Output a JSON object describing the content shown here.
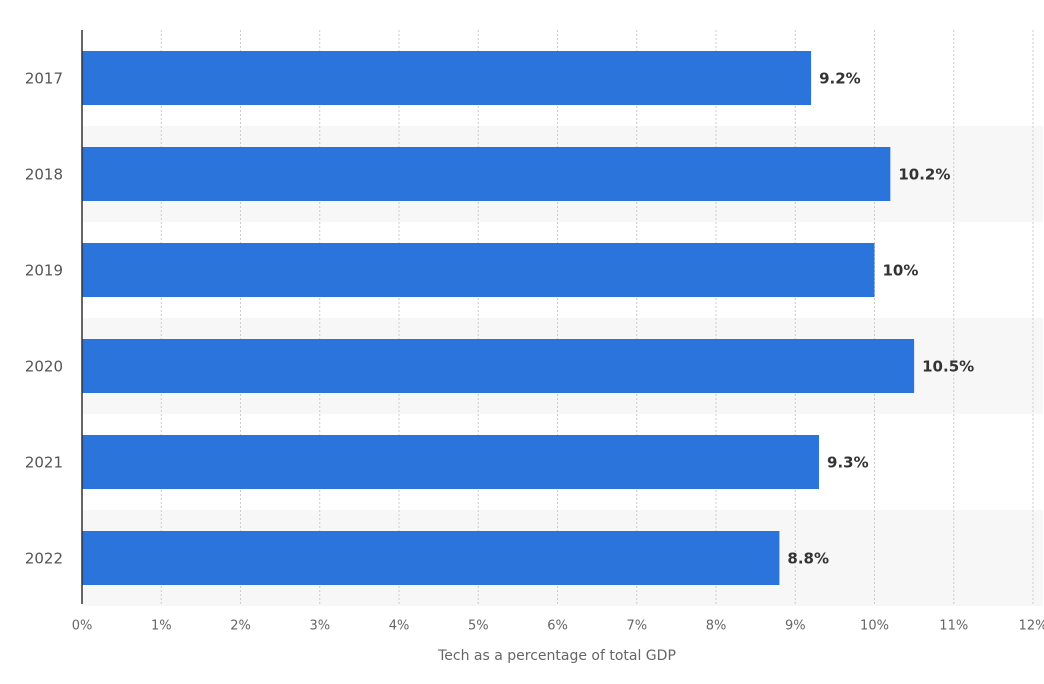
{
  "chart_data": {
    "type": "bar",
    "orientation": "horizontal",
    "categories": [
      "2017",
      "2018",
      "2019",
      "2020",
      "2021",
      "2022"
    ],
    "values": [
      9.2,
      10.2,
      10,
      10.5,
      9.3,
      8.8
    ],
    "value_labels": [
      "9.2%",
      "10.2%",
      "10%",
      "10.5%",
      "9.3%",
      "8.8%"
    ],
    "color": "#2a74db",
    "xlabel": "Tech as a percentage of total GDP",
    "xlim": [
      0,
      12
    ],
    "xticks": [
      {
        "value": 0,
        "label": "0%"
      },
      {
        "value": 1,
        "label": "1%"
      },
      {
        "value": 2,
        "label": "2%"
      },
      {
        "value": 3,
        "label": "3%"
      },
      {
        "value": 4,
        "label": "4%"
      },
      {
        "value": 5,
        "label": "5%"
      },
      {
        "value": 6,
        "label": "6%"
      },
      {
        "value": 7,
        "label": "7%"
      },
      {
        "value": 8,
        "label": "8%"
      },
      {
        "value": 9,
        "label": "9%"
      },
      {
        "value": 10,
        "label": "10%"
      },
      {
        "value": 11,
        "label": "11%"
      },
      {
        "value": 12,
        "label": "12%"
      }
    ],
    "grid": true
  }
}
